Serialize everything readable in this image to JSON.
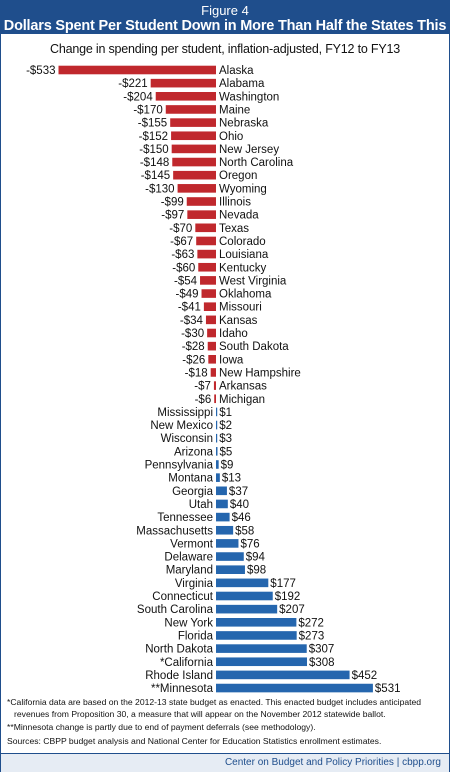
{
  "figure_label": "Figure 4",
  "title": "Dollars Spent Per Student Down in More Than Half the States This Year",
  "colors": {
    "header_bg": "#1f4e8c",
    "negative": "#c0282d",
    "positive": "#2566ae"
  },
  "chart_data": {
    "type": "bar",
    "orientation": "horizontal",
    "title": "Change in spending per student, inflation-adjusted, FY12 to FY13",
    "value_prefix": "$",
    "categories": [
      "Alaska",
      "Alabama",
      "Washington",
      "Maine",
      "Nebraska",
      "Ohio",
      "New Jersey",
      "North Carolina",
      "Oregon",
      "Wyoming",
      "Illinois",
      "Nevada",
      "Texas",
      "Colorado",
      "Louisiana",
      "Kentucky",
      "West Virginia",
      "Oklahoma",
      "Missouri",
      "Kansas",
      "Idaho",
      "South Dakota",
      "Iowa",
      "New Hampshire",
      "Arkansas",
      "Michigan",
      "Mississippi",
      "New Mexico",
      "Wisconsin",
      "Arizona",
      "Pennsylvania",
      "Montana",
      "Georgia",
      "Utah",
      "Tennessee",
      "Massachusetts",
      "Vermont",
      "Delaware",
      "Maryland",
      "Virginia",
      "Connecticut",
      "South Carolina",
      "New York",
      "Florida",
      "North Dakota",
      "*California",
      "Rhode Island",
      "**Minnesota"
    ],
    "values": [
      -533,
      -221,
      -204,
      -170,
      -155,
      -152,
      -150,
      -148,
      -145,
      -130,
      -99,
      -97,
      -70,
      -67,
      -63,
      -60,
      -54,
      -49,
      -41,
      -34,
      -30,
      -28,
      -26,
      -18,
      -7,
      -6,
      1,
      2,
      3,
      5,
      9,
      13,
      37,
      40,
      46,
      58,
      76,
      94,
      98,
      177,
      192,
      207,
      272,
      273,
      307,
      308,
      452,
      531
    ]
  },
  "notes": {
    "note1": "*California data are based on the 2012-13 state budget as enacted. This enacted budget includes anticipated revenues from Proposition 30, a measure that will appear on the November 2012 statewide ballot.",
    "note2": "**Minnesota change is partly due to end of payment deferrals (see methodology).",
    "sources": "Sources: CBPP budget analysis and National Center for Education Statistics enrollment estimates."
  },
  "footer": "Center on Budget and Policy Priorities | cbpp.org"
}
